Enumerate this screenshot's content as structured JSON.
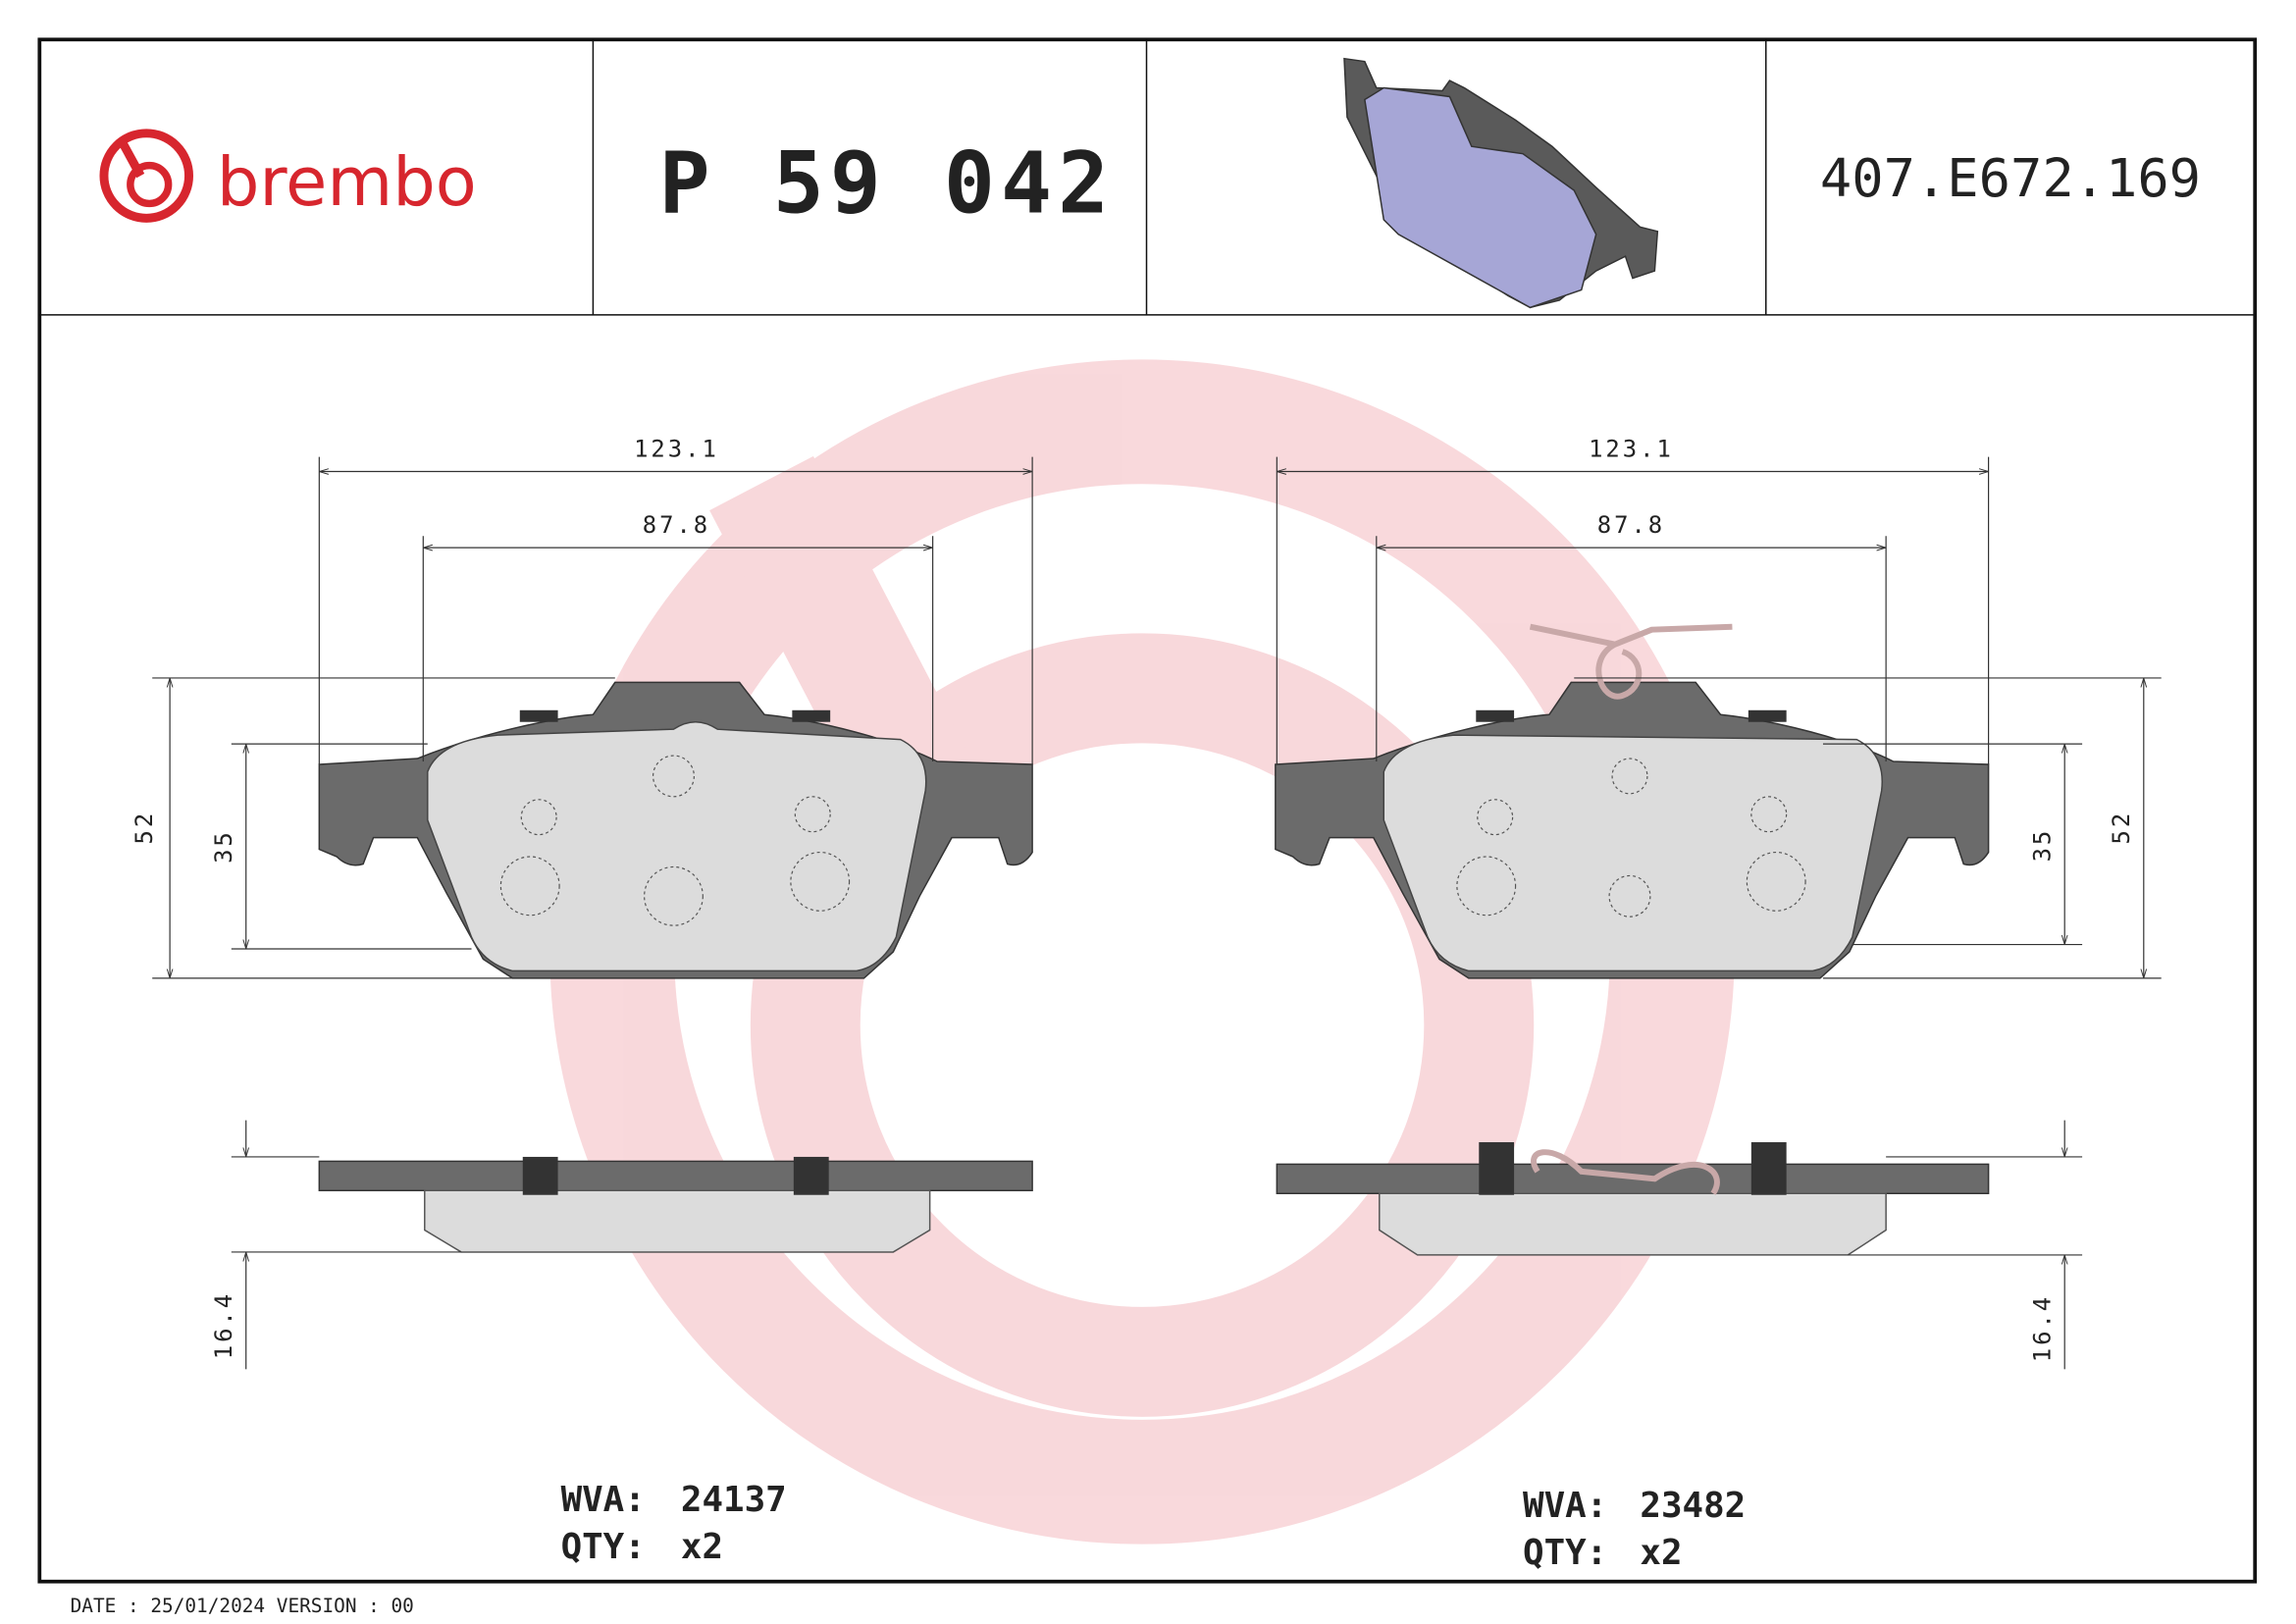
{
  "header": {
    "brand": "brembo",
    "part_number": "P 59 042",
    "code": "407.E672.169"
  },
  "left": {
    "width_outer": "123.1",
    "width_inner": "87.8",
    "height_outer": "52",
    "height_inner": "35",
    "thickness": "16.4",
    "wva_label": "WVA:",
    "wva": "24137",
    "qty_label": "QTY:",
    "qty": "x2"
  },
  "right": {
    "width_outer": "123.1",
    "width_inner": "87.8",
    "height_outer": "52",
    "height_inner": "35",
    "thickness": "16.4",
    "wva_label": "WVA:",
    "wva": "23482",
    "qty_label": "QTY:",
    "qty": "x2"
  },
  "footer": {
    "text": "DATE : 25/01/2024 VERSION : 00"
  }
}
